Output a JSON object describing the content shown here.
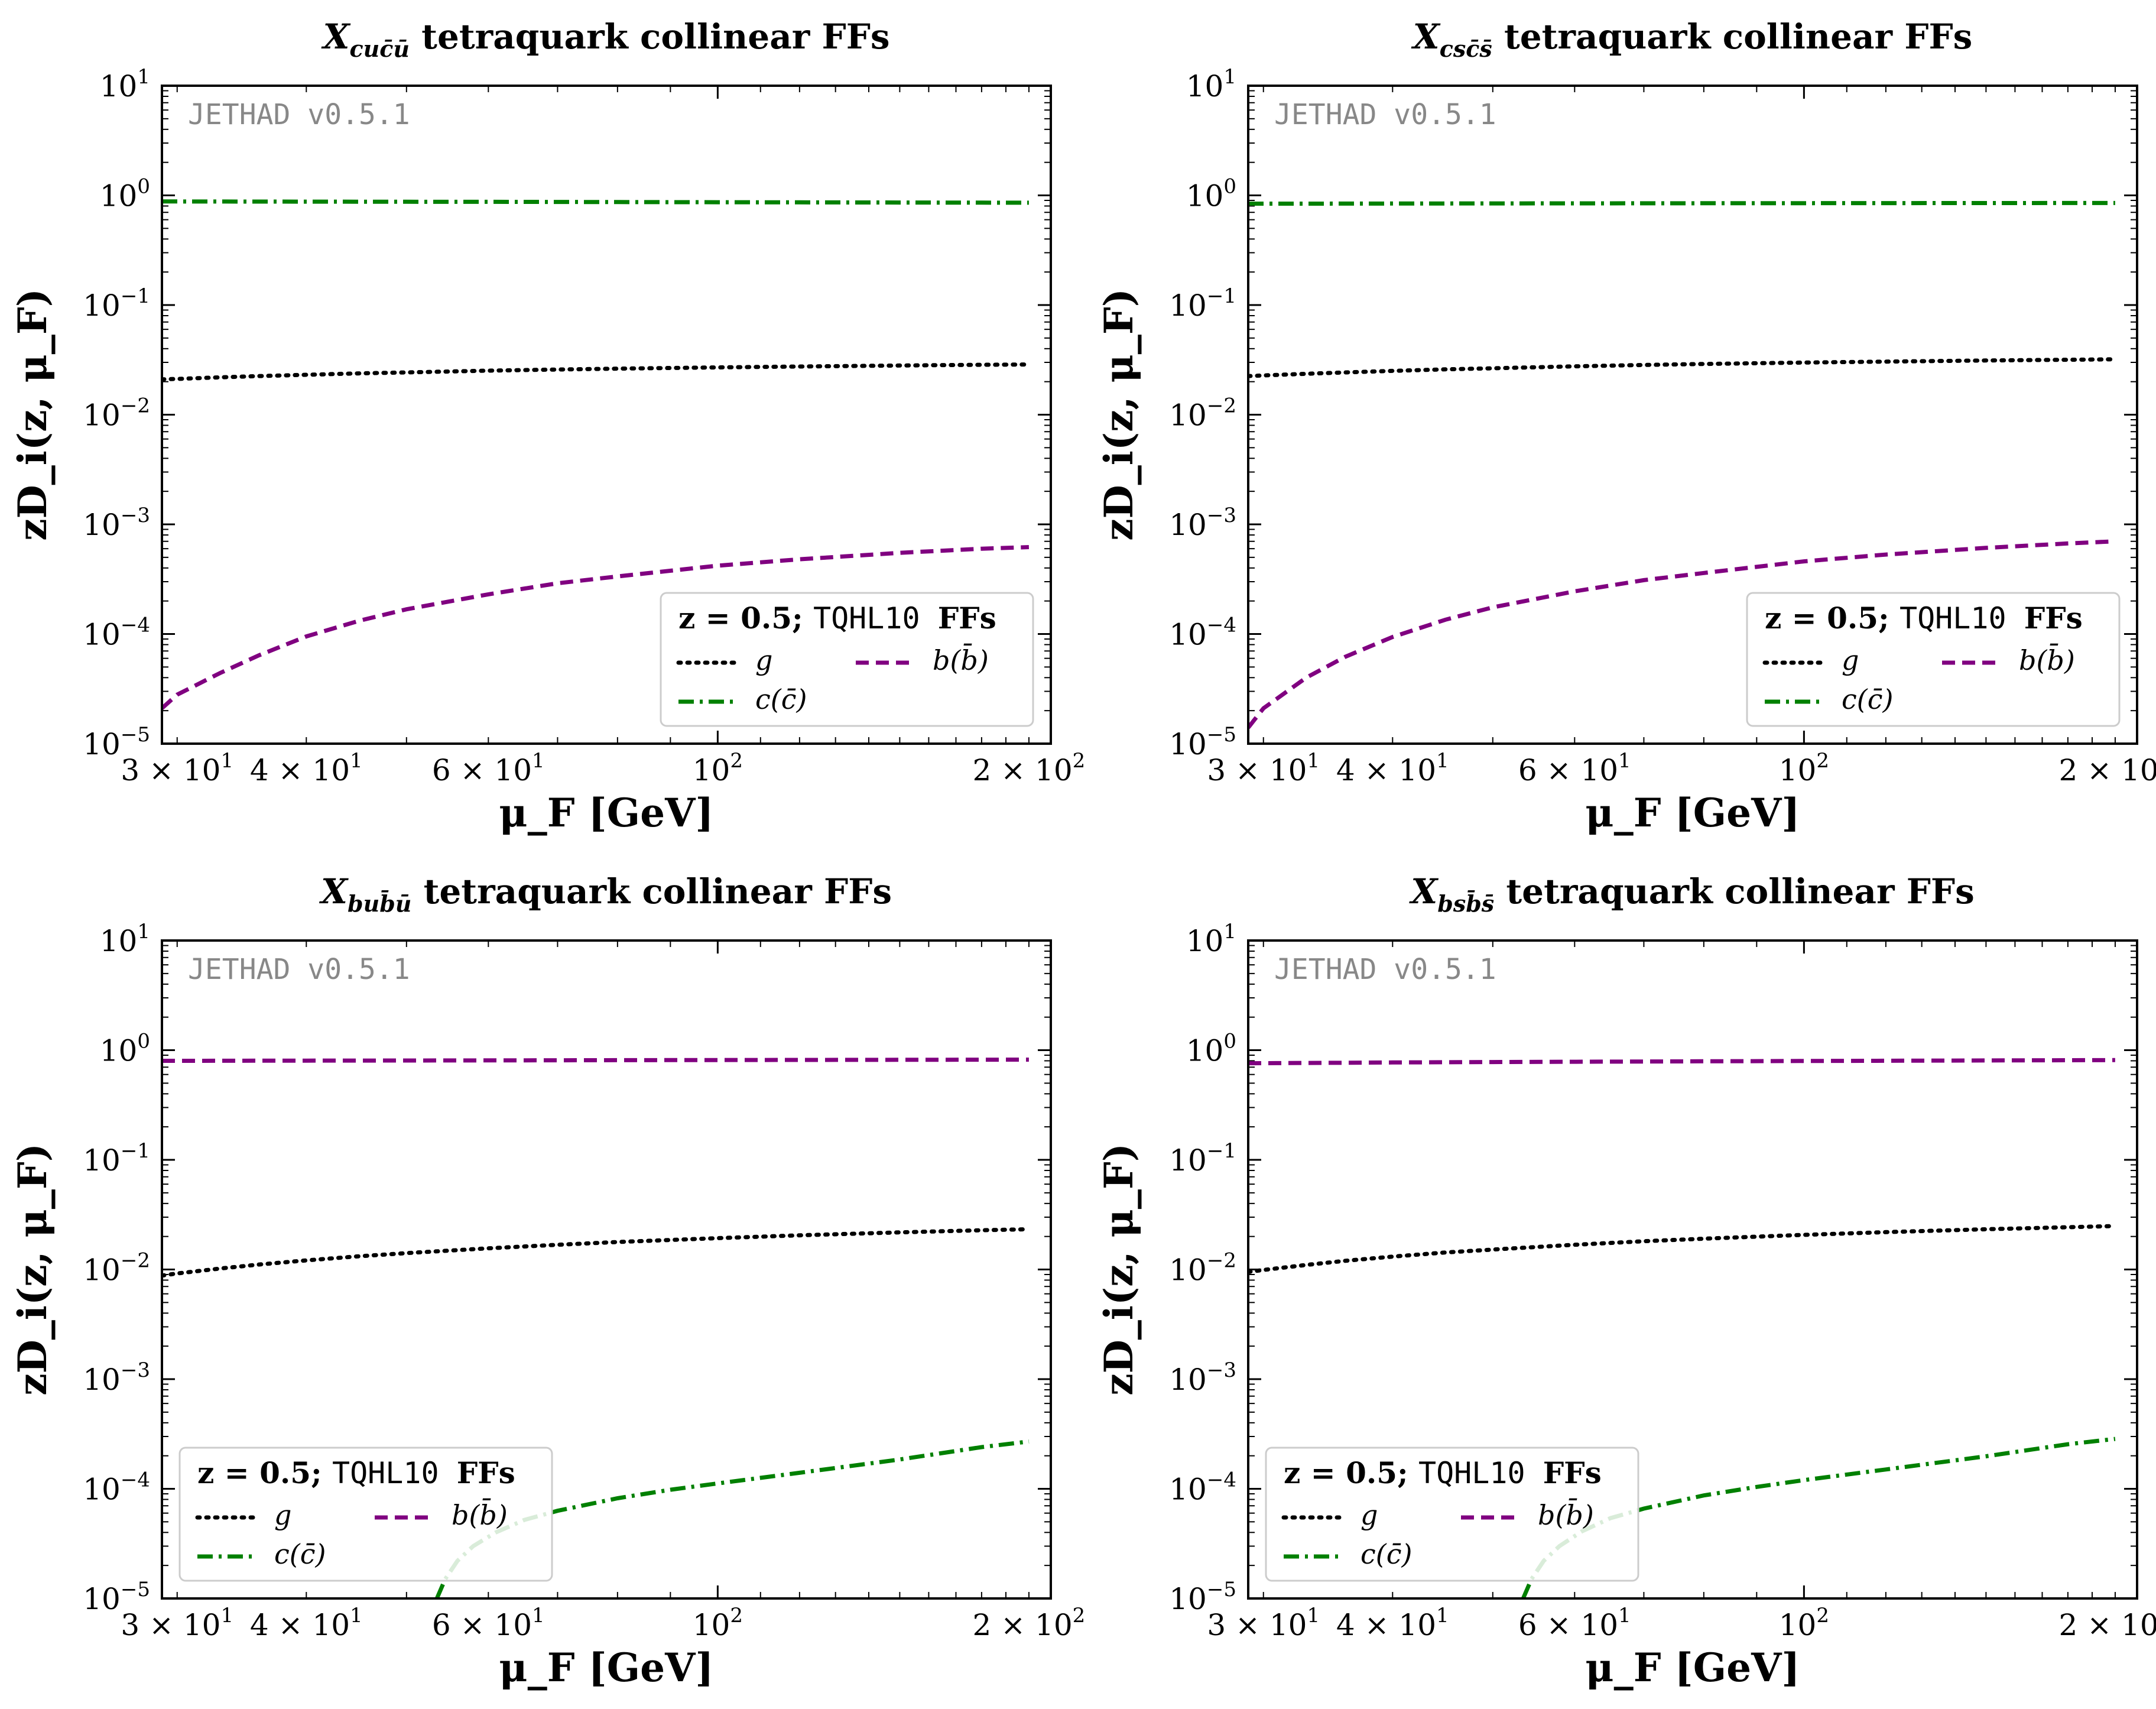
{
  "colors": {
    "g": "#000000",
    "c": "#008000",
    "b": "#800080",
    "watermark": "#888888"
  },
  "common": {
    "watermark": "JETHAD v0.5.1",
    "xlabel": "μ_F [GeV]",
    "ylabel": "zD_i(z, μ_F)",
    "xlim": [
      29,
      210
    ],
    "ylim": [
      1e-05,
      10
    ],
    "x_ticks": [
      {
        "value": 30,
        "mantissa": "3 × 10",
        "exp": "1"
      },
      {
        "value": 40,
        "mantissa": "4 × 10",
        "exp": "1"
      },
      {
        "value": 60,
        "mantissa": "6 × 10",
        "exp": "1"
      },
      {
        "value": 100,
        "mantissa": "10",
        "exp": "2"
      },
      {
        "value": 200,
        "mantissa": "2 × 10",
        "exp": "2"
      }
    ],
    "y_ticks": [
      {
        "value": 10,
        "base": "10",
        "exp": "1"
      },
      {
        "value": 1,
        "base": "10",
        "exp": "0"
      },
      {
        "value": 0.1,
        "base": "10",
        "exp": "−1"
      },
      {
        "value": 0.01,
        "base": "10",
        "exp": "−2"
      },
      {
        "value": 0.001,
        "base": "10",
        "exp": "−3"
      },
      {
        "value": 0.0001,
        "base": "10",
        "exp": "−4"
      },
      {
        "value": 1e-05,
        "base": "10",
        "exp": "−5"
      }
    ],
    "legend": {
      "title_z": "z = 0.5;",
      "title_set": "TQHL10",
      "title_suffix": "FFs",
      "g_label": "g",
      "c_label": "c(c̄)",
      "b_label": "b(b̄)"
    }
  },
  "chart_data": [
    {
      "type": "line",
      "title_sym": "X",
      "title_sub": "cuc̄ū",
      "title_rest": " tetraquark collinear FFs",
      "legend_position": "lower-right",
      "x": [
        29,
        30,
        33,
        36,
        40,
        45,
        50,
        60,
        70,
        80,
        100,
        120,
        150,
        180,
        200
      ],
      "series": [
        {
          "name": "g",
          "style": "dotted",
          "values": [
            0.021,
            0.0212,
            0.0219,
            0.0225,
            0.0231,
            0.0238,
            0.0243,
            0.0252,
            0.0258,
            0.0263,
            0.027,
            0.0275,
            0.0281,
            0.0285,
            0.0287
          ]
        },
        {
          "name": "c(c̄)",
          "style": "dashdot",
          "values": [
            0.88,
            0.88,
            0.879,
            0.878,
            0.877,
            0.876,
            0.875,
            0.873,
            0.871,
            0.869,
            0.866,
            0.864,
            0.861,
            0.858,
            0.857
          ]
        },
        {
          "name": "b(b̄)",
          "style": "dashed",
          "values": [
            2.1e-05,
            2.8e-05,
            4.4e-05,
            6.4e-05,
            9.5e-05,
            0.000132,
            0.000168,
            0.00023,
            0.00029,
            0.000335,
            0.00042,
            0.00048,
            0.00055,
            0.0006,
            0.00062
          ]
        }
      ]
    },
    {
      "type": "line",
      "title_sym": "X",
      "title_sub": "csc̄s̄",
      "title_rest": " tetraquark collinear FFs",
      "legend_position": "lower-right",
      "x": [
        29,
        30,
        33,
        36,
        40,
        45,
        50,
        60,
        70,
        80,
        100,
        120,
        150,
        180,
        200
      ],
      "series": [
        {
          "name": "g",
          "style": "dotted",
          "values": [
            0.0225,
            0.0228,
            0.0236,
            0.0243,
            0.0251,
            0.0259,
            0.0265,
            0.0276,
            0.0284,
            0.029,
            0.0299,
            0.0305,
            0.0312,
            0.0317,
            0.032
          ]
        },
        {
          "name": "c(c̄)",
          "style": "dashdot",
          "values": [
            0.84,
            0.84,
            0.841,
            0.842,
            0.843,
            0.844,
            0.845,
            0.846,
            0.847,
            0.848,
            0.849,
            0.85,
            0.851,
            0.852,
            0.852
          ]
        },
        {
          "name": "b(b̄)",
          "style": "dashed",
          "values": [
            1.4e-05,
            2.1e-05,
            4e-05,
            6.2e-05,
            9.4e-05,
            0.000135,
            0.000175,
            0.000245,
            0.00031,
            0.00036,
            0.00046,
            0.00053,
            0.00061,
            0.00067,
            0.0007
          ]
        }
      ]
    },
    {
      "type": "line",
      "title_sym": "X",
      "title_sub": "bub̄ū",
      "title_rest": " tetraquark collinear FFs",
      "legend_position": "lower-left",
      "x": [
        29,
        30,
        33,
        36,
        40,
        45,
        50,
        60,
        70,
        80,
        100,
        120,
        150,
        180,
        200
      ],
      "series": [
        {
          "name": "g",
          "style": "dotted",
          "values": [
            0.0088,
            0.0092,
            0.0102,
            0.0111,
            0.0121,
            0.0132,
            0.0141,
            0.0156,
            0.0168,
            0.0178,
            0.0193,
            0.0205,
            0.0218,
            0.0228,
            0.0233
          ]
        },
        {
          "name": "b(b̄)",
          "style": "dashed",
          "values": [
            0.8,
            0.8,
            0.801,
            0.802,
            0.803,
            0.804,
            0.805,
            0.807,
            0.809,
            0.811,
            0.813,
            0.815,
            0.817,
            0.819,
            0.82
          ]
        },
        {
          "name": "c(c̄)",
          "style": "dashdot",
          "x": [
            53.5,
            54.5,
            56,
            58,
            61,
            65,
            70,
            80,
            90,
            100,
            120,
            150,
            180,
            200
          ],
          "values": [
            1e-05,
            1.5e-05,
            2.2e-05,
            3e-05,
            4e-05,
            5.2e-05,
            6.3e-05,
            8.2e-05,
            9.8e-05,
            0.000112,
            0.00014,
            0.000185,
            0.00024,
            0.00027
          ]
        }
      ]
    },
    {
      "type": "line",
      "title_sym": "X",
      "title_sub": "bsb̄s̄",
      "title_rest": " tetraquark collinear FFs",
      "legend_position": "lower-left",
      "x": [
        29,
        30,
        33,
        36,
        40,
        45,
        50,
        60,
        70,
        80,
        100,
        120,
        150,
        180,
        200
      ],
      "series": [
        {
          "name": "g",
          "style": "dotted",
          "values": [
            0.0095,
            0.0099,
            0.011,
            0.012,
            0.0131,
            0.0143,
            0.0152,
            0.0168,
            0.0181,
            0.0191,
            0.0207,
            0.0219,
            0.0233,
            0.0243,
            0.0249
          ]
        },
        {
          "name": "b(b̄)",
          "style": "dashed",
          "values": [
            0.76,
            0.761,
            0.765,
            0.768,
            0.772,
            0.776,
            0.779,
            0.784,
            0.788,
            0.792,
            0.797,
            0.801,
            0.806,
            0.81,
            0.812
          ]
        },
        {
          "name": "c(c̄)",
          "style": "dashdot",
          "x": [
            53.5,
            54.5,
            56,
            58,
            61,
            65,
            70,
            80,
            90,
            100,
            120,
            150,
            180,
            200
          ],
          "values": [
            1e-05,
            1.5e-05,
            2.2e-05,
            3e-05,
            4.1e-05,
            5.4e-05,
            6.6e-05,
            8.7e-05,
            0.000104,
            0.00012,
            0.00015,
            0.000198,
            0.000255,
            0.000285
          ]
        }
      ]
    }
  ]
}
